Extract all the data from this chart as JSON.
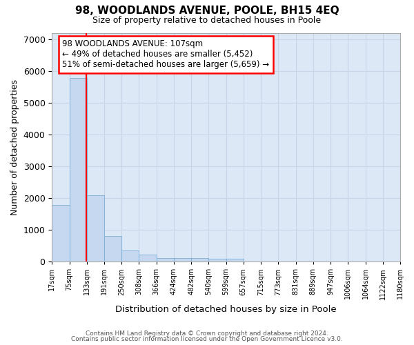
{
  "title_line1": "98, WOODLANDS AVENUE, POOLE, BH15 4EQ",
  "title_line2": "Size of property relative to detached houses in Poole",
  "xlabel": "Distribution of detached houses by size in Poole",
  "ylabel": "Number of detached properties",
  "bar_color": "#c5d8f0",
  "bar_edge_color": "#7aadd4",
  "bins": [
    "17sqm",
    "75sqm",
    "133sqm",
    "191sqm",
    "250sqm",
    "308sqm",
    "366sqm",
    "424sqm",
    "482sqm",
    "540sqm",
    "599sqm",
    "657sqm",
    "715sqm",
    "773sqm",
    "831sqm",
    "889sqm",
    "947sqm",
    "1006sqm",
    "1064sqm",
    "1122sqm",
    "1180sqm"
  ],
  "values": [
    1780,
    5780,
    2080,
    800,
    360,
    220,
    120,
    110,
    105,
    100,
    80,
    0,
    0,
    0,
    0,
    0,
    0,
    0,
    0,
    0
  ],
  "vline_x_index": 1.47,
  "annotation_text": "98 WOODLANDS AVENUE: 107sqm\n← 49% of detached houses are smaller (5,452)\n51% of semi-detached houses are larger (5,659) →",
  "annotation_box_color": "white",
  "annotation_box_edge_color": "red",
  "vline_color": "red",
  "ylim": [
    0,
    7200
  ],
  "yticks": [
    0,
    1000,
    2000,
    3000,
    4000,
    5000,
    6000,
    7000
  ],
  "grid_color": "#c8d4e8",
  "bg_color": "#dce8f5",
  "footer_line1": "Contains HM Land Registry data © Crown copyright and database right 2024.",
  "footer_line2": "Contains public sector information licensed under the Open Government Licence v3.0.",
  "figsize": [
    6.0,
    5.0
  ],
  "dpi": 100
}
